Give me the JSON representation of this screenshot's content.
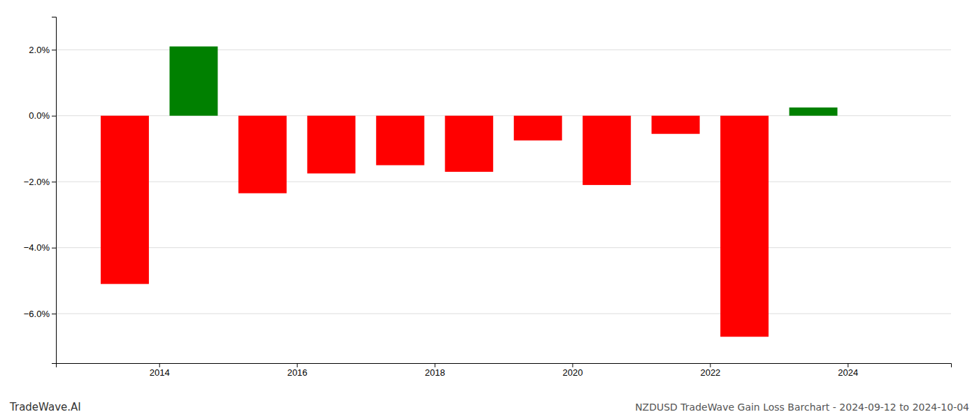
{
  "chart_data": {
    "type": "bar",
    "title": "NZDUSD TradeWave Gain Loss Barchart - 2024-09-12 to 2024-10-04",
    "annotations": [
      "TradeWave.AI"
    ],
    "x": [
      2013.5,
      2014.5,
      2015.5,
      2016.5,
      2017.5,
      2018.5,
      2019.5,
      2020.5,
      2021.5,
      2022.5,
      2023.5
    ],
    "values": [
      -5.1,
      2.1,
      -2.35,
      -1.75,
      -1.5,
      -1.7,
      -0.75,
      -2.1,
      -0.55,
      -6.7,
      0.25
    ],
    "colors": [
      "#ff0000",
      "#008000",
      "#ff0000",
      "#ff0000",
      "#ff0000",
      "#ff0000",
      "#ff0000",
      "#ff0000",
      "#ff0000",
      "#ff0000",
      "#008000"
    ],
    "xlim": [
      2012.5,
      2025.5
    ],
    "xticks": [
      2014,
      2016,
      2018,
      2020,
      2022,
      2024
    ],
    "ylim": [
      -7.5,
      3.0
    ],
    "yticks": [
      {
        "value": 2.0,
        "label": "2.0%"
      },
      {
        "value": 0.0,
        "label": "0.0%"
      },
      {
        "value": -2.0,
        "label": "−2.0%"
      },
      {
        "value": -4.0,
        "label": "−4.0%"
      },
      {
        "value": -6.0,
        "label": "−6.0%"
      }
    ],
    "grid": true
  }
}
